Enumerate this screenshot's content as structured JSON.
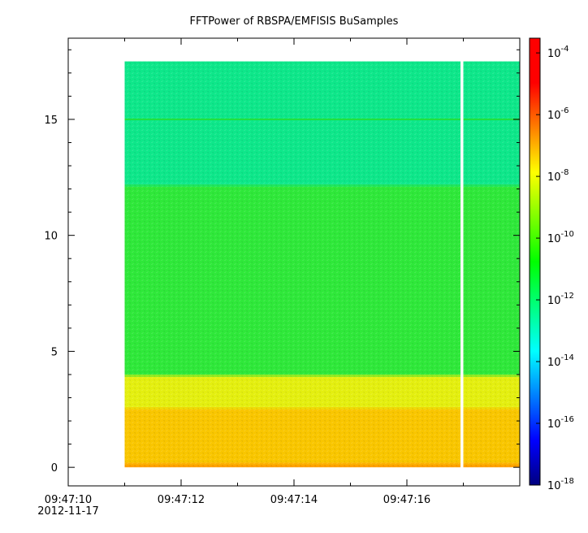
{
  "chart_data": {
    "type": "heatmap",
    "title": "FFTPower of RBSPA/EMFISIS  BuSamples",
    "xlabel": "",
    "ylabel": "",
    "x_axis": {
      "range": [
        "09:47:10",
        "09:47:18"
      ],
      "ticks": [
        {
          "time": "09:47:10",
          "label": "09:47:10",
          "sublabel": "2012-11-17"
        },
        {
          "time": "09:47:12",
          "label": "09:47:12"
        },
        {
          "time": "09:47:14",
          "label": "09:47:14"
        },
        {
          "time": "09:47:16",
          "label": "09:47:16"
        }
      ],
      "minor_ticks": [
        "09:47:11",
        "09:47:13",
        "09:47:15",
        "09:47:17"
      ]
    },
    "y_axis": {
      "range": [
        -0.8,
        18.5
      ],
      "ticks": [
        0,
        5,
        10,
        15
      ]
    },
    "colorbar": {
      "scale": "log",
      "range": [
        1e-18,
        0.0003
      ],
      "tick_exponents": [
        -18,
        -16,
        -14,
        -12,
        -10,
        -8,
        -6,
        -4
      ],
      "colormap": [
        "#00007f",
        "#0000ff",
        "#007fff",
        "#00ffff",
        "#00ff7f",
        "#00ff00",
        "#7fff00",
        "#ffff00",
        "#ff7f00",
        "#ff0000",
        "#ff0000"
      ]
    },
    "data_extent": {
      "time_start": "09:47:11.0",
      "time_end": "09:47:18.0",
      "y_min": 0,
      "y_max": 17.5
    },
    "gap": {
      "time_start": "09:47:16.95",
      "time_end": "09:47:17.0"
    },
    "bands": [
      {
        "y_range": [
          0,
          0.2
        ],
        "power": 2e-08,
        "color": "#ff9f00"
      },
      {
        "y_range": [
          0.2,
          2.6
        ],
        "power": 1e-08,
        "color": "#f9c600"
      },
      {
        "y_range": [
          2.6,
          4.0
        ],
        "power": 3e-09,
        "color": "#e4ef10"
      },
      {
        "y_range": [
          4.0,
          12.2
        ],
        "power": 1e-10,
        "color": "#2fe83a"
      },
      {
        "y_range": [
          12.2,
          17.5
        ],
        "power": 3e-12,
        "color": "#0ee78a"
      }
    ],
    "lines": [
      {
        "y": 15.0,
        "power": 3e-11,
        "color": "#22e038"
      }
    ]
  }
}
